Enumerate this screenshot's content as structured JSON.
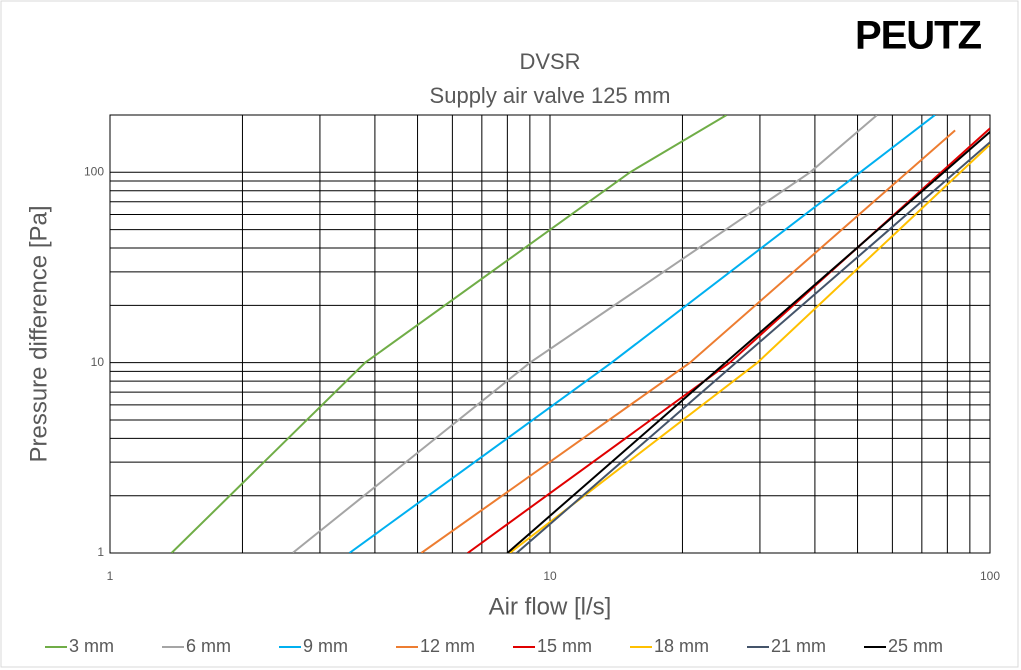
{
  "chart_data": {
    "type": "line",
    "logo": "PEUTZ",
    "title": "DVSR",
    "subtitle": "Supply air valve 125 mm",
    "xlabel": "Air flow [l/s]",
    "ylabel": "Pressure difference [Pa]",
    "xscale": "log",
    "yscale": "log",
    "grid": true,
    "legend": "bottom",
    "xlim": [
      1,
      100
    ],
    "ylim": [
      1,
      200
    ],
    "xticks": [
      1,
      10,
      100
    ],
    "yticks": [
      1,
      10,
      100
    ],
    "minor_xticks": [
      2,
      3,
      4,
      5,
      6,
      7,
      8,
      9,
      20,
      30,
      40,
      50,
      60,
      70,
      80,
      90
    ],
    "minor_yticks": [
      2,
      3,
      4,
      5,
      6,
      7,
      8,
      9,
      20,
      30,
      40,
      50,
      60,
      70,
      80,
      90,
      200
    ],
    "series": [
      {
        "name": "3 mm",
        "color": "#70ad47",
        "x": [
          1.38,
          3.8,
          15.2,
          25.2
        ],
        "values": [
          1,
          10,
          100,
          200
        ]
      },
      {
        "name": "6 mm",
        "color": "#a5a5a5",
        "x": [
          2.6,
          9.0,
          39,
          55.4
        ],
        "values": [
          1,
          10,
          100,
          200
        ]
      },
      {
        "name": "9 mm",
        "color": "#00b0f0",
        "x": [
          3.5,
          13.8,
          50.7,
          75
        ],
        "values": [
          1,
          10,
          100,
          200
        ]
      },
      {
        "name": "12 mm",
        "color": "#ed7d31",
        "x": [
          5.1,
          20.8,
          83.3
        ],
        "values": [
          1,
          10,
          166
        ]
      },
      {
        "name": "15 mm",
        "color": "#e00000",
        "x": [
          6.5,
          25.6,
          100
        ],
        "values": [
          1,
          10,
          170
        ]
      },
      {
        "name": "18 mm",
        "color": "#ffc000",
        "x": [
          8.1,
          29.6,
          100
        ],
        "values": [
          1,
          10,
          140
        ]
      },
      {
        "name": "21 mm",
        "color": "#44546a",
        "x": [
          8.4,
          100
        ],
        "values": [
          1,
          144
        ]
      },
      {
        "name": "25 mm",
        "color": "#000000",
        "x": [
          8.0,
          100
        ],
        "values": [
          1,
          163
        ]
      }
    ]
  }
}
